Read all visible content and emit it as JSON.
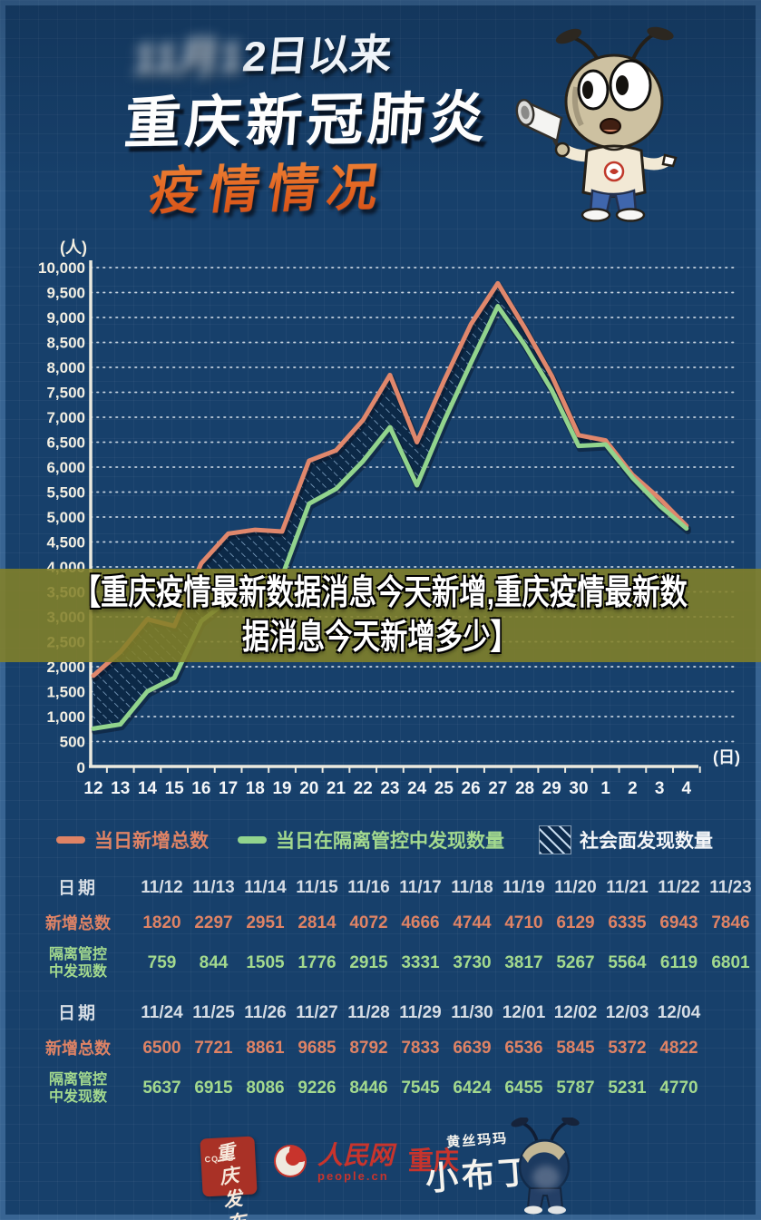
{
  "header": {
    "date_prefix_blurred": "11月1",
    "date_suffix": "2日以来",
    "title": "重庆新冠肺炎",
    "subtitle": "疫情情况"
  },
  "overlay": {
    "line1": "【重庆疫情最新数据消息今天新增,重庆疫情最新数",
    "line2": "据消息今天新增多少】"
  },
  "chart_data": {
    "type": "line",
    "y_unit": "(人)",
    "x_unit": "(日)",
    "x_labels": [
      "12",
      "13",
      "14",
      "15",
      "16",
      "17",
      "18",
      "19",
      "20",
      "21",
      "22",
      "23",
      "24",
      "25",
      "26",
      "27",
      "28",
      "29",
      "30",
      "1",
      "2",
      "3",
      "4"
    ],
    "ylim": [
      0,
      10000
    ],
    "y_tick_step": 500,
    "grid": true,
    "legend_position": "bottom",
    "series": [
      {
        "name": "当日新增总数",
        "color": "#e0876c",
        "values": [
          1820,
          2297,
          2951,
          2814,
          4072,
          4666,
          4744,
          4710,
          6129,
          6335,
          6943,
          7846,
          6500,
          7721,
          8861,
          9685,
          8792,
          7833,
          6639,
          6536,
          5845,
          5372,
          4822
        ]
      },
      {
        "name": "当日在隔离管控中发现数量",
        "color": "#92d48d",
        "values": [
          759,
          844,
          1505,
          1776,
          2915,
          3331,
          3730,
          3817,
          5267,
          5564,
          6119,
          6801,
          5637,
          6915,
          8086,
          9226,
          8446,
          7545,
          6424,
          6455,
          5787,
          5231,
          4770
        ]
      }
    ],
    "band": {
      "name": "社会面发现数量",
      "between": [
        "当日新增总数",
        "当日在隔离管控中发现数量"
      ],
      "style": "hatched"
    }
  },
  "legend": {
    "items": [
      {
        "label": "当日新增总数",
        "swatch": "line",
        "color": "#df8365"
      },
      {
        "label": "当日在隔离管控中发现数量",
        "swatch": "line",
        "color": "#a3d98e"
      },
      {
        "label": "社会面发现数量",
        "swatch": "hatch",
        "color": "#f4f6f8"
      }
    ]
  },
  "tables": {
    "row_labels": {
      "date": "日期",
      "total": "新增总数",
      "quarantine_line1": "隔离管控",
      "quarantine_line2": "中发现数"
    },
    "blocks": [
      {
        "dates": [
          "11/12",
          "11/13",
          "11/14",
          "11/15",
          "11/16",
          "11/17",
          "11/18",
          "11/19",
          "11/20",
          "11/21",
          "11/22",
          "11/23"
        ],
        "totals": [
          "1820",
          "2297",
          "2951",
          "2814",
          "4072",
          "4666",
          "4744",
          "4710",
          "6129",
          "6335",
          "6943",
          "7846"
        ],
        "quarantine": [
          "759",
          "844",
          "1505",
          "1776",
          "2915",
          "3331",
          "3730",
          "3817",
          "5267",
          "5564",
          "6119",
          "6801"
        ]
      },
      {
        "dates": [
          "11/24",
          "11/25",
          "11/26",
          "11/27",
          "11/28",
          "11/29",
          "11/30",
          "12/01",
          "12/02",
          "12/03",
          "12/04"
        ],
        "totals": [
          "6500",
          "7721",
          "8861",
          "9685",
          "8792",
          "7833",
          "6639",
          "6536",
          "5845",
          "5372",
          "4822"
        ],
        "quarantine": [
          "5637",
          "6915",
          "8086",
          "9226",
          "8446",
          "7545",
          "6424",
          "6455",
          "5787",
          "5231",
          "4770"
        ]
      }
    ]
  },
  "footer": {
    "stamp": {
      "line1": "重庆",
      "line2": "发布",
      "small_letters": "CQ FB"
    },
    "people": {
      "name": "人民网",
      "domain": "people.cn",
      "region": "重庆"
    },
    "budding": {
      "top": "黄丝玛玛",
      "main": "小布丁"
    }
  }
}
